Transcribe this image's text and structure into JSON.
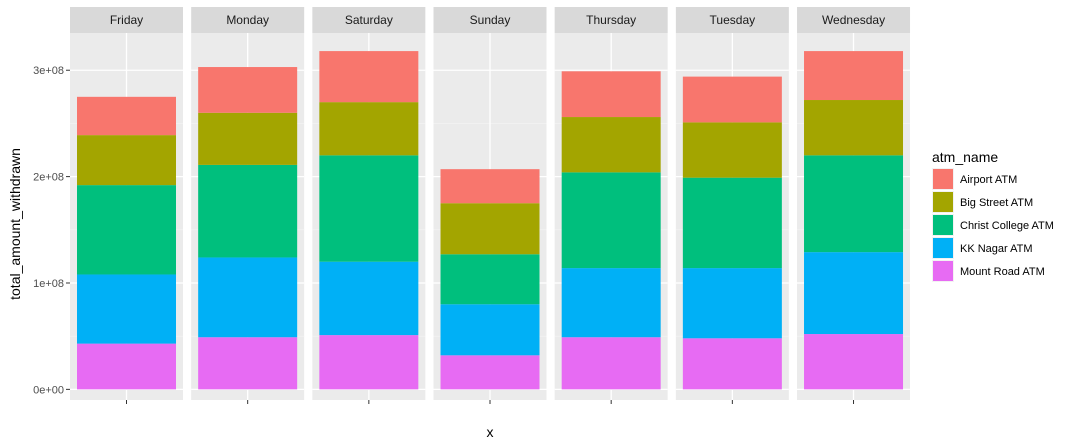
{
  "chart_data": {
    "type": "bar",
    "stacked": true,
    "faceted": true,
    "xlabel": "x",
    "ylabel": "total_amount_withdrawn",
    "ylim": [
      -10000000,
      335000000
    ],
    "yticks": [
      0,
      100000000,
      200000000,
      300000000
    ],
    "ytick_labels": [
      "0e+00",
      "1e+08",
      "2e+08",
      "3e+08"
    ],
    "grid": true,
    "legend_position": "right",
    "legend_title": "atm_name",
    "panels": [
      "Friday",
      "Monday",
      "Saturday",
      "Sunday",
      "Thursday",
      "Tuesday",
      "Wednesday"
    ],
    "series": [
      {
        "name": "Mount Road ATM",
        "color": "#E76BF3",
        "values": [
          43000000,
          49000000,
          51000000,
          32000000,
          49000000,
          48000000,
          52000000
        ]
      },
      {
        "name": "KK Nagar ATM",
        "color": "#00B0F6",
        "values": [
          65000000,
          75000000,
          69000000,
          48000000,
          65000000,
          66000000,
          77000000
        ]
      },
      {
        "name": "Christ College ATM",
        "color": "#00BF7D",
        "values": [
          84000000,
          87000000,
          100000000,
          47000000,
          90000000,
          85000000,
          91000000
        ]
      },
      {
        "name": "Big Street ATM",
        "color": "#A3A500",
        "values": [
          47000000,
          49000000,
          50000000,
          48000000,
          52000000,
          52000000,
          52000000
        ]
      },
      {
        "name": "Airport ATM",
        "color": "#F8766D",
        "values": [
          36000000,
          43000000,
          48000000,
          32000000,
          43000000,
          43000000,
          46000000
        ]
      }
    ],
    "legend_order": [
      "Airport ATM",
      "Big Street ATM",
      "Christ College ATM",
      "KK Nagar ATM",
      "Mount Road ATM"
    ]
  }
}
